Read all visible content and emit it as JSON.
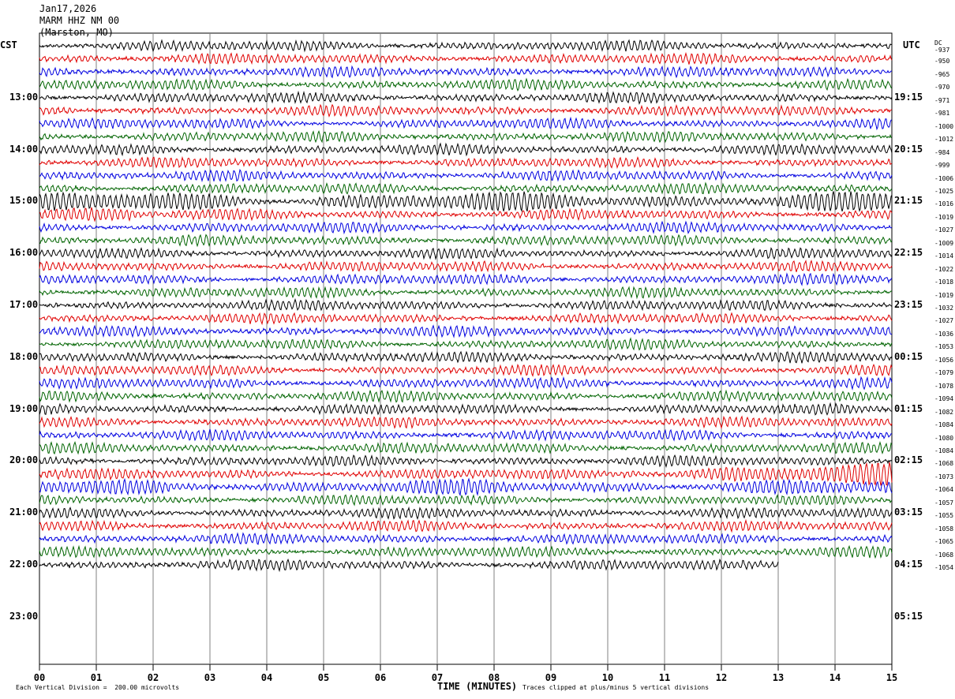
{
  "header": {
    "date": "Jan17,2026",
    "station": "MARM HHZ NM 00",
    "location": "(Marston, MO)"
  },
  "left_timezone": "CST",
  "right_timezone": "UTC",
  "dc_header": "DC",
  "colors": {
    "traces": [
      "#000000",
      "#e00000",
      "#0000e0",
      "#006400"
    ],
    "grid": "#808080"
  },
  "chart_data": {
    "type": "line",
    "title": "",
    "xlabel": "TIME (MINUTES)",
    "xlim": [
      0,
      15
    ],
    "x_ticks": [
      "00",
      "01",
      "02",
      "03",
      "04",
      "05",
      "06",
      "07",
      "08",
      "09",
      "10",
      "11",
      "12",
      "13",
      "14",
      "15"
    ],
    "left_hour_labels": [
      "13:00",
      "14:00",
      "15:00",
      "16:00",
      "17:00",
      "18:00",
      "19:00",
      "20:00",
      "21:00",
      "22:00",
      "23:00"
    ],
    "right_hour_labels": [
      "19:15",
      "20:15",
      "21:15",
      "22:15",
      "23:15",
      "00:15",
      "01:15",
      "02:15",
      "03:15",
      "04:15",
      "05:15"
    ],
    "traces_per_hour": 4,
    "minutes_per_trace": 15,
    "dc_offsets": [
      "-937",
      "-950",
      "-965",
      "-970",
      "-971",
      "-981",
      "-1000",
      "-1012",
      "-984",
      "-999",
      "-1006",
      "-1025",
      "-1016",
      "-1019",
      "-1027",
      "-1009",
      "-1014",
      "-1022",
      "-1018",
      "-1019",
      "-1032",
      "-1027",
      "-1036",
      "-1053",
      "-1056",
      "-1079",
      "-1078",
      "-1094",
      "-1082",
      "-1084",
      "-1080",
      "-1084",
      "-1068",
      "-1073",
      "-1064",
      "-1057",
      "-1055",
      "-1058",
      "-1065",
      "-1068",
      "-1054"
    ],
    "last_trace_end_minute": 13.0,
    "vertical_division": "Each Vertical Division =  200.00 microvolts",
    "clip_note": "Traces clipped at plus/minus 5 vertical divisions"
  }
}
